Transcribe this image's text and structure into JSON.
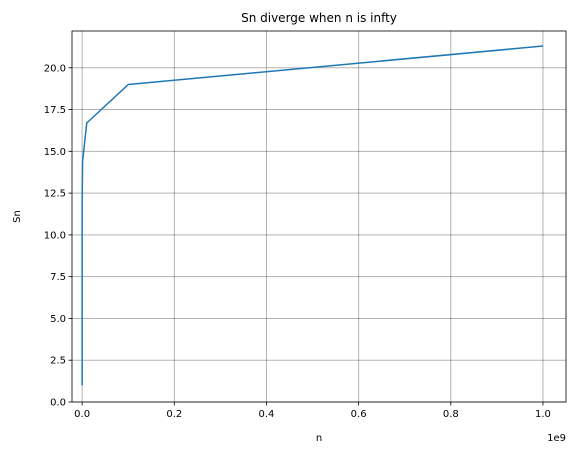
{
  "chart_data": {
    "type": "line",
    "title": "Sn diverge when n is infty",
    "xlabel": "n",
    "ylabel": "Sn",
    "x_offset_label": "1e9",
    "xlim": [
      -22000000,
      1050000000
    ],
    "ylim": [
      0,
      22.2
    ],
    "grid": true,
    "x_ticks": [
      0,
      200000000,
      400000000,
      600000000,
      800000000,
      1000000000
    ],
    "x_tick_labels": [
      "0.0",
      "0.2",
      "0.4",
      "0.6",
      "0.8",
      "1.0"
    ],
    "y_ticks": [
      0,
      2.5,
      5,
      7.5,
      10,
      12.5,
      15,
      17.5,
      20
    ],
    "y_tick_labels": [
      "0.0",
      "2.5",
      "5.0",
      "7.5",
      "10.0",
      "12.5",
      "15.0",
      "17.5",
      "20.0"
    ],
    "series": [
      {
        "color": "#1f77b4",
        "x": [
          1,
          10,
          100,
          1000,
          10000,
          100000,
          1000000,
          10000000,
          100000000,
          1000000000
        ],
        "y": [
          1.0,
          2.929,
          5.187,
          7.485,
          9.788,
          12.09,
          14.393,
          16.695,
          18.998,
          21.3
        ]
      }
    ]
  }
}
